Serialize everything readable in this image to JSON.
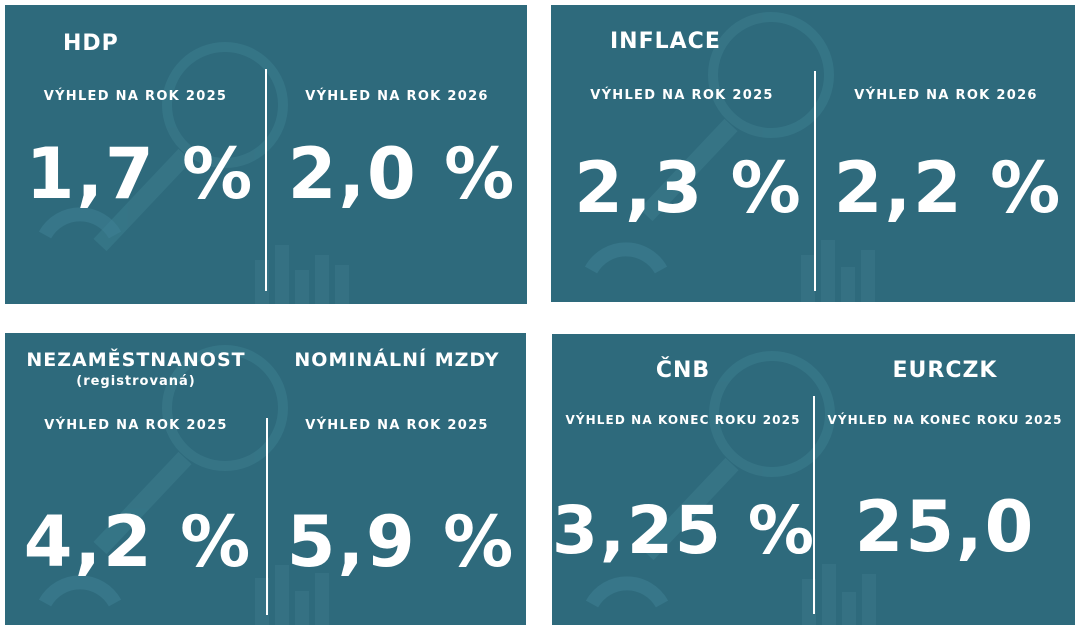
{
  "hdp": {
    "title": "HDP",
    "left": {
      "label": "VÝHLED NA ROK 2025",
      "value": "1,7 %"
    },
    "right": {
      "label": "VÝHLED NA ROK 2026",
      "value": "2,0 %"
    }
  },
  "inflace": {
    "title": "INFLACE",
    "left": {
      "label": "VÝHLED NA ROK 2025",
      "value": "2,3 %"
    },
    "right": {
      "label": "VÝHLED NA ROK 2026",
      "value": "2,2 %"
    }
  },
  "labor": {
    "left": {
      "title": "NEZAMĚSTNANOST",
      "note": "(registrovaná)",
      "label": "VÝHLED NA ROK 2025",
      "value": "4,2 %"
    },
    "right": {
      "title": "NOMINÁLNÍ MZDY",
      "label": "VÝHLED NA ROK 2025",
      "value": "5,9 %"
    }
  },
  "rates": {
    "left": {
      "title": "ČNB",
      "label": "VÝHLED NA KONEC ROKU 2025",
      "value": "3,25 %"
    },
    "right": {
      "title": "EURCZK",
      "label": "VÝHLED NA KONEC ROKU 2025",
      "value": "25,0"
    }
  },
  "colors": {
    "panel": "#2e6a7c",
    "text": "#ffffff"
  }
}
